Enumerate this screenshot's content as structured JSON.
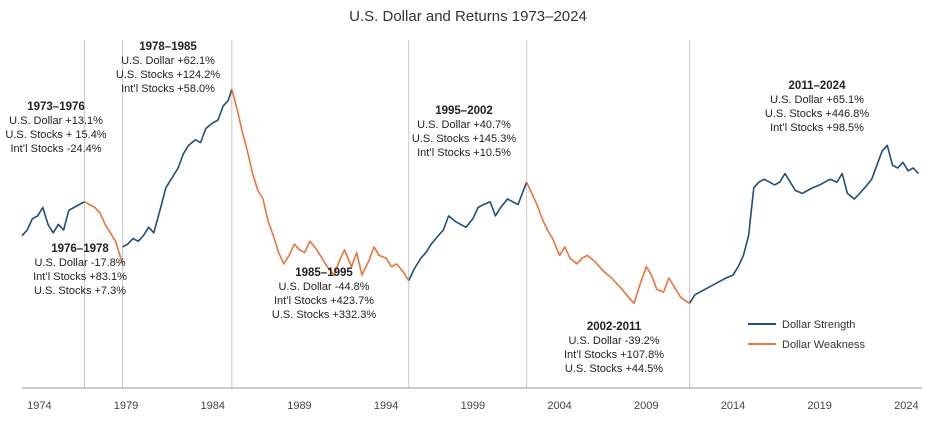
{
  "chart_data": {
    "type": "line",
    "title": "U.S. Dollar and Returns 1973–2024",
    "xlabel": "",
    "ylabel": "",
    "x_range": [
      1973.0,
      2024.9
    ],
    "x_ticks": [
      "1974",
      "1979",
      "1984",
      "1989",
      "1994",
      "1999",
      "2004",
      "2009",
      "2014",
      "2019",
      "2024"
    ],
    "y_axis_visible": false,
    "ylim": [
      80,
      130
    ],
    "grid": false,
    "legend_position": "bottom-right",
    "period_dividers": [
      1976.6,
      1978.8,
      1985.1,
      1995.3,
      2002.1,
      2011.5
    ],
    "series": [
      {
        "name": "Dollar Strength",
        "color": "#1f4e79",
        "segments": [
          [
            [
              1973.0,
              98.5
            ],
            [
              1973.3,
              99.5
            ],
            [
              1973.6,
              101.5
            ],
            [
              1973.9,
              102.0
            ],
            [
              1974.2,
              103.5
            ],
            [
              1974.5,
              100.5
            ],
            [
              1974.8,
              99.0
            ],
            [
              1975.1,
              100.5
            ],
            [
              1975.4,
              99.5
            ],
            [
              1975.7,
              103.0
            ],
            [
              1976.0,
              103.5
            ],
            [
              1976.3,
              104.0
            ],
            [
              1976.6,
              104.5
            ]
          ],
          [
            [
              1978.8,
              96.5
            ],
            [
              1979.1,
              97.0
            ],
            [
              1979.4,
              98.0
            ],
            [
              1979.7,
              97.5
            ],
            [
              1980.0,
              98.5
            ],
            [
              1980.3,
              100.0
            ],
            [
              1980.6,
              99.0
            ],
            [
              1981.0,
              103.5
            ],
            [
              1981.3,
              107.0
            ],
            [
              1981.6,
              108.5
            ],
            [
              1982.0,
              110.5
            ],
            [
              1982.3,
              113.0
            ],
            [
              1982.6,
              114.5
            ],
            [
              1983.0,
              115.5
            ],
            [
              1983.3,
              115.0
            ],
            [
              1983.6,
              117.5
            ],
            [
              1984.0,
              118.5
            ],
            [
              1984.3,
              119.0
            ],
            [
              1984.6,
              121.5
            ],
            [
              1984.9,
              122.5
            ],
            [
              1985.1,
              124.5
            ]
          ],
          [
            [
              1995.3,
              90.5
            ],
            [
              1995.6,
              92.5
            ],
            [
              1996.0,
              94.5
            ],
            [
              1996.3,
              95.5
            ],
            [
              1996.6,
              97.0
            ],
            [
              1997.0,
              98.5
            ],
            [
              1997.3,
              99.5
            ],
            [
              1997.6,
              102.0
            ],
            [
              1998.0,
              101.0
            ],
            [
              1998.3,
              100.5
            ],
            [
              1998.6,
              100.0
            ],
            [
              1999.0,
              101.5
            ],
            [
              1999.3,
              103.5
            ],
            [
              1999.6,
              104.0
            ],
            [
              2000.0,
              104.5
            ],
            [
              2000.3,
              102.0
            ],
            [
              2000.6,
              103.5
            ],
            [
              2001.0,
              105.0
            ],
            [
              2001.3,
              104.5
            ],
            [
              2001.6,
              104.0
            ],
            [
              2002.1,
              108.0
            ]
          ],
          [
            [
              2011.5,
              86.5
            ],
            [
              2011.8,
              88.0
            ],
            [
              2012.1,
              88.5
            ],
            [
              2012.4,
              89.0
            ],
            [
              2012.7,
              89.5
            ],
            [
              2013.0,
              90.0
            ],
            [
              2013.3,
              90.5
            ],
            [
              2013.6,
              91.0
            ],
            [
              2014.0,
              91.5
            ],
            [
              2014.3,
              93.0
            ],
            [
              2014.6,
              95.0
            ],
            [
              2014.9,
              98.5
            ],
            [
              2015.2,
              107.0
            ],
            [
              2015.5,
              108.0
            ],
            [
              2015.8,
              108.5
            ],
            [
              2016.1,
              108.0
            ],
            [
              2016.4,
              107.5
            ],
            [
              2016.7,
              108.0
            ],
            [
              2017.0,
              109.5
            ],
            [
              2017.3,
              108.0
            ],
            [
              2017.6,
              106.5
            ],
            [
              2018.0,
              106.0
            ],
            [
              2018.3,
              106.5
            ],
            [
              2018.6,
              107.0
            ],
            [
              2019.0,
              107.5
            ],
            [
              2019.3,
              108.0
            ],
            [
              2019.6,
              108.5
            ],
            [
              2020.0,
              108.0
            ],
            [
              2020.3,
              109.5
            ],
            [
              2020.6,
              106.0
            ],
            [
              2021.0,
              105.0
            ],
            [
              2021.3,
              106.0
            ],
            [
              2021.6,
              107.0
            ],
            [
              2022.0,
              108.5
            ],
            [
              2022.3,
              111.0
            ],
            [
              2022.6,
              113.5
            ],
            [
              2022.9,
              114.5
            ],
            [
              2023.2,
              111.0
            ],
            [
              2023.5,
              110.5
            ],
            [
              2023.8,
              111.5
            ],
            [
              2024.1,
              110.0
            ],
            [
              2024.4,
              110.5
            ],
            [
              2024.7,
              109.5
            ]
          ]
        ]
      },
      {
        "name": "Dollar Weakness",
        "color": "#e8743b",
        "segments": [
          [
            [
              1976.6,
              104.5
            ],
            [
              1976.9,
              104.0
            ],
            [
              1977.2,
              103.5
            ],
            [
              1977.5,
              102.5
            ],
            [
              1977.8,
              100.5
            ],
            [
              1978.1,
              99.0
            ],
            [
              1978.4,
              97.5
            ],
            [
              1978.8,
              93.5
            ]
          ],
          [
            [
              1985.1,
              124.5
            ],
            [
              1985.4,
              121.0
            ],
            [
              1985.7,
              117.0
            ],
            [
              1986.0,
              113.5
            ],
            [
              1986.3,
              109.5
            ],
            [
              1986.6,
              106.5
            ],
            [
              1986.9,
              105.0
            ],
            [
              1987.2,
              101.0
            ],
            [
              1987.5,
              98.5
            ],
            [
              1987.8,
              95.5
            ],
            [
              1988.1,
              93.5
            ],
            [
              1988.4,
              95.0
            ],
            [
              1988.7,
              97.0
            ],
            [
              1989.0,
              96.0
            ],
            [
              1989.3,
              95.5
            ],
            [
              1989.6,
              97.5
            ],
            [
              1990.0,
              96.0
            ],
            [
              1990.3,
              94.5
            ],
            [
              1990.6,
              93.0
            ],
            [
              1991.0,
              91.5
            ],
            [
              1991.3,
              94.0
            ],
            [
              1991.6,
              96.0
            ],
            [
              1992.0,
              93.0
            ],
            [
              1992.3,
              95.5
            ],
            [
              1992.6,
              91.5
            ],
            [
              1993.0,
              94.0
            ],
            [
              1993.3,
              96.5
            ],
            [
              1993.6,
              95.0
            ],
            [
              1994.0,
              94.5
            ],
            [
              1994.3,
              93.0
            ],
            [
              1994.6,
              93.5
            ],
            [
              1995.0,
              92.0
            ],
            [
              1995.3,
              90.5
            ]
          ],
          [
            [
              2002.1,
              108.0
            ],
            [
              2002.4,
              106.0
            ],
            [
              2002.7,
              104.0
            ],
            [
              2003.0,
              101.5
            ],
            [
              2003.3,
              99.5
            ],
            [
              2003.6,
              98.0
            ],
            [
              2004.0,
              95.0
            ],
            [
              2004.3,
              96.5
            ],
            [
              2004.6,
              94.5
            ],
            [
              2005.0,
              93.5
            ],
            [
              2005.3,
              94.5
            ],
            [
              2005.6,
              95.0
            ],
            [
              2006.0,
              94.0
            ],
            [
              2006.3,
              93.0
            ],
            [
              2006.6,
              92.0
            ],
            [
              2007.0,
              91.0
            ],
            [
              2007.3,
              90.0
            ],
            [
              2007.6,
              89.0
            ],
            [
              2008.0,
              87.5
            ],
            [
              2008.3,
              86.5
            ],
            [
              2008.6,
              89.5
            ],
            [
              2009.0,
              93.0
            ],
            [
              2009.3,
              91.5
            ],
            [
              2009.6,
              89.0
            ],
            [
              2010.0,
              88.5
            ],
            [
              2010.3,
              91.0
            ],
            [
              2010.6,
              89.5
            ],
            [
              2011.0,
              87.5
            ],
            [
              2011.5,
              86.5
            ]
          ]
        ]
      }
    ],
    "annotations": [
      {
        "period": "1973–1976",
        "lines": [
          "U.S. Dollar +13.1%",
          "U.S. Stocks + 15.4%",
          "Int’l Stocks -24.4%"
        ]
      },
      {
        "period": "1976–1978",
        "lines": [
          "U.S. Dollar -17.8%",
          "Int’l Stocks +83.1%",
          "U.S. Stocks +7.3%"
        ]
      },
      {
        "period": "1978–1985",
        "lines": [
          "U.S. Dollar +62.1%",
          "U.S. Stocks +124.2%",
          "Int’l Stocks +58.0%"
        ]
      },
      {
        "period": "1985–1995",
        "lines": [
          "U.S. Dollar -44.8%",
          "Int’l Stocks +423.7%",
          "U.S. Stocks +332.3%"
        ]
      },
      {
        "period": "1995–2002",
        "lines": [
          "U.S. Dollar +40.7%",
          "U.S. Stocks +145.3%",
          "Int’l Stocks +10.5%"
        ]
      },
      {
        "period": "2002-2011",
        "lines": [
          "U.S. Dollar -39.2%",
          "Int’l Stocks +107.8%",
          "U.S. Stocks +44.5%"
        ]
      },
      {
        "period": "2011–2024",
        "lines": [
          "U.S. Dollar +65.1%",
          "U.S. Stocks +446.8%",
          "Int’l Stocks  +98.5%"
        ]
      }
    ]
  }
}
